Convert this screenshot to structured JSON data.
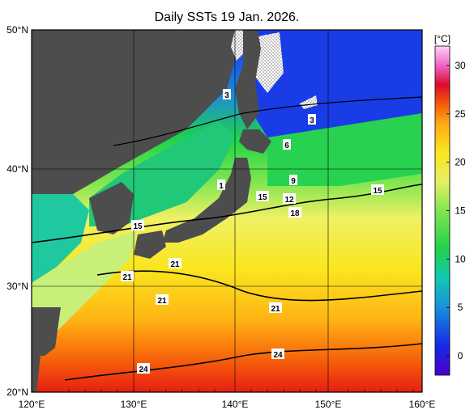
{
  "title": "Daily SSTs 19 Jan. 2026.",
  "lat_labels": [
    "50°N",
    "40°N",
    "30°N",
    "20°N"
  ],
  "lon_labels": [
    "120°E",
    "130°E",
    "140°E",
    "150°E",
    "160°E"
  ],
  "colorbar": {
    "unit": "[°C]",
    "min": -2,
    "max": 32,
    "ticks": [
      "30",
      "25",
      "20",
      "15",
      "10",
      "5",
      "0"
    ],
    "tick_values": [
      30,
      25,
      20,
      15,
      10,
      5,
      0
    ],
    "stops": [
      {
        "v": -2,
        "c": "#4a00c8"
      },
      {
        "v": 1,
        "c": "#1428e6"
      },
      {
        "v": 5,
        "c": "#1890dc"
      },
      {
        "v": 8,
        "c": "#10c8b4"
      },
      {
        "v": 11,
        "c": "#1ed24a"
      },
      {
        "v": 15,
        "c": "#80e650"
      },
      {
        "v": 18,
        "c": "#e6f064"
      },
      {
        "v": 21,
        "c": "#fae61e"
      },
      {
        "v": 24,
        "c": "#ffaa14"
      },
      {
        "v": 26,
        "c": "#f55a0a"
      },
      {
        "v": 28,
        "c": "#dc0a28"
      },
      {
        "v": 30,
        "c": "#f064c8"
      },
      {
        "v": 32,
        "c": "#ffd2f5"
      }
    ]
  },
  "contour_labels": [
    "3",
    "3",
    "6",
    "9",
    "1",
    "15",
    "12",
    "18",
    "15",
    "15",
    "21",
    "21",
    "21",
    "21",
    "24",
    "24"
  ],
  "colors": {
    "land": "#4d4d4d",
    "ice": "#ffffff"
  }
}
